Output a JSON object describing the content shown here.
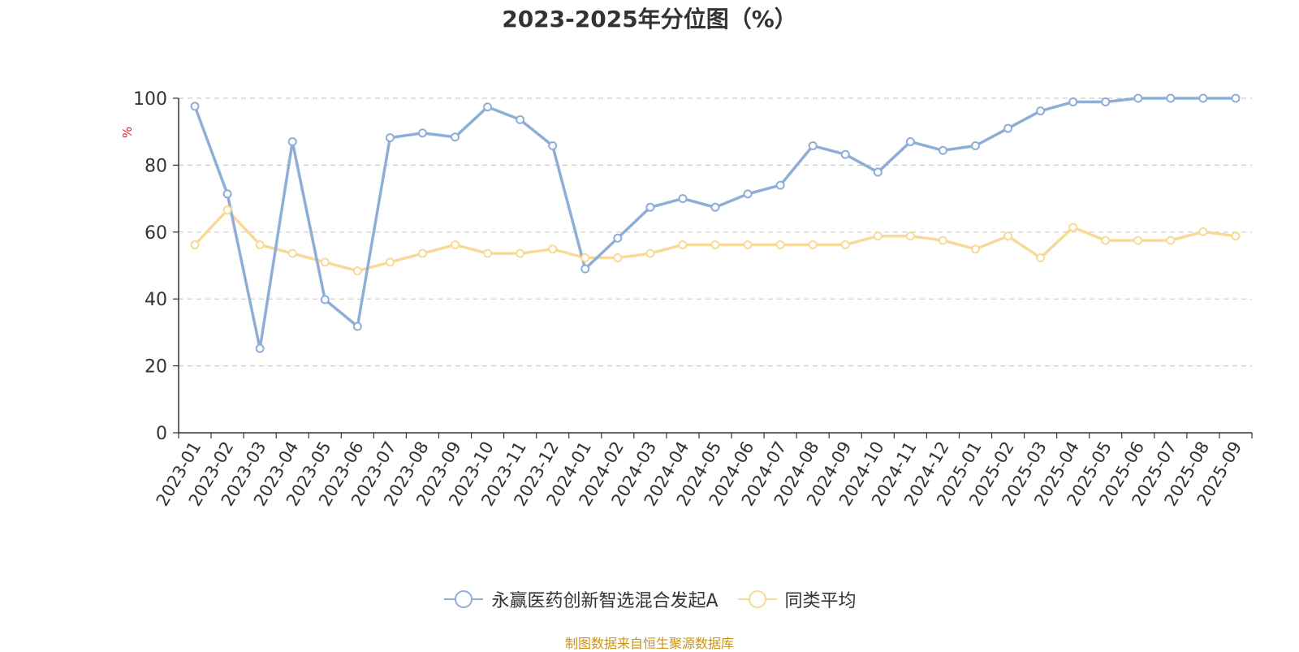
{
  "chart_data": {
    "type": "line",
    "title": "2023-2025年分位图（%）",
    "ylabel": "%",
    "xlabel": "",
    "ylim": [
      0,
      100
    ],
    "yticks": [
      0,
      20,
      40,
      60,
      80,
      100
    ],
    "grid": true,
    "legend_position": "bottom-center",
    "categories": [
      "2023-01",
      "2023-02",
      "2023-03",
      "2023-04",
      "2023-05",
      "2023-06",
      "2023-07",
      "2023-08",
      "2023-09",
      "2023-10",
      "2023-11",
      "2023-12",
      "2024-01",
      "2024-02",
      "2024-03",
      "2024-04",
      "2024-05",
      "2024-06",
      "2024-07",
      "2024-08",
      "2024-09",
      "2024-10",
      "2024-11",
      "2024-12",
      "2025-01",
      "2025-02",
      "2025-03",
      "2025-04",
      "2025-05",
      "2025-06",
      "2025-07",
      "2025-08",
      "2025-09"
    ],
    "series": [
      {
        "name": "永赢医药创新智选混合发起A",
        "color": "#8eaed8",
        "values": [
          97.6,
          71.4,
          25.2,
          87.0,
          39.8,
          31.8,
          88.2,
          89.6,
          88.4,
          97.4,
          93.6,
          85.8,
          49.0,
          58.2,
          67.4,
          70.0,
          67.4,
          71.4,
          74.0,
          85.8,
          83.2,
          77.9,
          87.0,
          84.4,
          85.8,
          91.0,
          96.2,
          98.9,
          98.9,
          100,
          100,
          100,
          100
        ]
      },
      {
        "name": "同类平均",
        "color": "#f9d997",
        "values": [
          56.2,
          66.6,
          56.2,
          53.6,
          51.0,
          48.4,
          51.0,
          53.6,
          56.2,
          53.6,
          53.6,
          54.9,
          52.3,
          52.3,
          53.6,
          56.2,
          56.2,
          56.2,
          56.2,
          56.2,
          56.2,
          58.8,
          58.8,
          57.5,
          54.9,
          58.8,
          52.3,
          61.4,
          57.5,
          57.5,
          57.5,
          60.1,
          58.8
        ]
      }
    ]
  },
  "footer": {
    "source": "制图数据来自恒生聚源数据库"
  }
}
